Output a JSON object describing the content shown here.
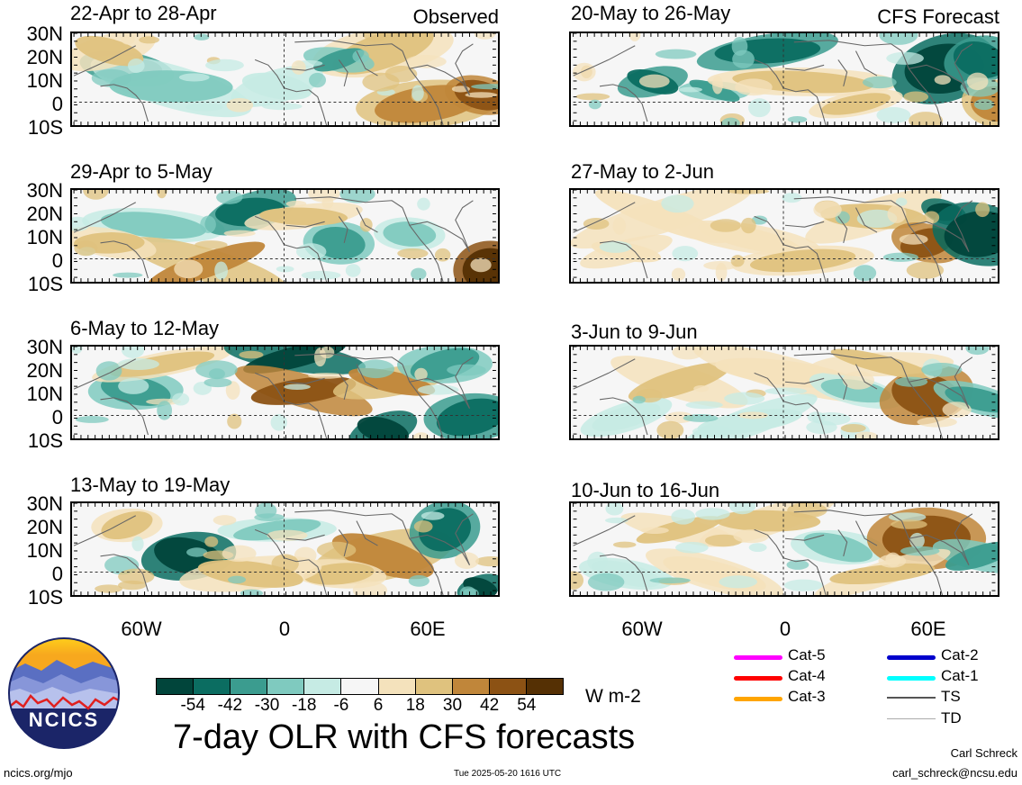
{
  "header": {
    "left_tag": "Observed",
    "right_tag": "CFS Forecast"
  },
  "panels": {
    "observed": [
      {
        "title": "22-Apr to 28-Apr"
      },
      {
        "title": "29-Apr to 5-May"
      },
      {
        "title": "6-May to 12-May"
      },
      {
        "title": "13-May to 19-May"
      }
    ],
    "forecast": [
      {
        "title": "20-May to 26-May"
      },
      {
        "title": "27-May to 2-Jun"
      },
      {
        "title": "3-Jun to 9-Jun"
      },
      {
        "title": "10-Jun to 16-Jun"
      }
    ]
  },
  "axes": {
    "lat_labels": [
      "30N",
      "20N",
      "10N",
      "0",
      "10S"
    ],
    "lon_labels": [
      "60W",
      "0",
      "60E"
    ]
  },
  "colorbar": {
    "ticks": [
      "-54",
      "-42",
      "-30",
      "-18",
      "-6",
      "6",
      "18",
      "30",
      "42",
      "54"
    ],
    "colors": [
      "#01453b",
      "#0b6d61",
      "#3b9c8f",
      "#7fcabf",
      "#c6ebe4",
      "#f6f6f6",
      "#f4e2bc",
      "#dfc27e",
      "#c0863a",
      "#8c5214",
      "#553004"
    ],
    "units": "W m-2"
  },
  "legend": {
    "items": [
      {
        "label": "Cat-5",
        "color": "#ff00ff"
      },
      {
        "label": "Cat-4",
        "color": "#ff0000"
      },
      {
        "label": "Cat-3",
        "color": "#ffa500"
      },
      {
        "label": "Cat-2",
        "color": "#0000cc"
      },
      {
        "label": "Cat-1",
        "color": "#00ffff"
      },
      {
        "label": "TS",
        "color": "#555555"
      },
      {
        "label": "TD",
        "color": "#aaaaaa"
      }
    ]
  },
  "logo": {
    "text": "NCICS"
  },
  "footer": {
    "main_title": "7-day OLR with CFS forecasts",
    "url": "ncics.org/mjo",
    "timestamp": "Tue 2025-05-20 1616 UTC",
    "author": "Carl Schreck",
    "email": "carl_schreck@ncsu.edu"
  }
}
